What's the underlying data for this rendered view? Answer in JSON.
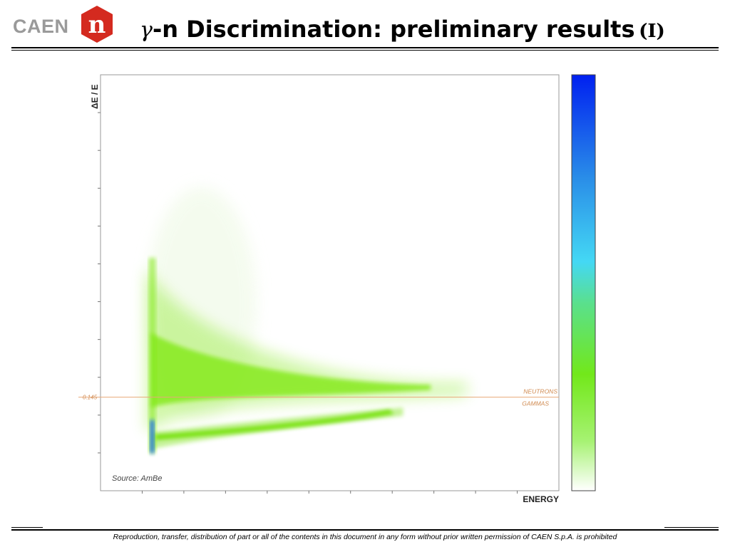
{
  "header": {
    "logo_text": "CAEN",
    "logo_badge_letter": "n",
    "title_gamma": "γ",
    "title_main": "-n Discrimination: preliminary results",
    "title_suffix": "(I)"
  },
  "footer": {
    "text": "Reproduction, transfer, distribution of part or all of the contents in this document in any form without prior written permission of  CAEN S.p.A. is prohibited"
  },
  "colors": {
    "logo_red": "#d42a1f",
    "threshold_line": "#e8a878",
    "threshold_text": "#d08a50",
    "neutron_band": "#7ee80e",
    "gamma_band": "#6fe000",
    "high_density": "#1a6cf0"
  },
  "chart_data": {
    "type": "heatmap",
    "title": "",
    "xlabel": "ENERGY",
    "ylabel": "ΔE / E",
    "x_ticks": 11,
    "y_ticks": 11,
    "grid": false,
    "threshold": {
      "value": 0.145,
      "label": "0.145",
      "upper_label": "NEUTRONS",
      "lower_label": "GAMMAS"
    },
    "annotation": "Source: AmBe",
    "series": [
      {
        "name": "NEUTRONS"
      },
      {
        "name": "GAMMAS"
      }
    ],
    "colorbar": {
      "stops": [
        {
          "offset": 0.0,
          "color": "#0020f0"
        },
        {
          "offset": 0.25,
          "color": "#2a8ee8"
        },
        {
          "offset": 0.45,
          "color": "#44d8f4"
        },
        {
          "offset": 0.55,
          "color": "#5ae08c"
        },
        {
          "offset": 0.72,
          "color": "#72e81a"
        },
        {
          "offset": 0.88,
          "color": "#a6f272"
        },
        {
          "offset": 1.0,
          "color": "#ffffff"
        }
      ]
    }
  }
}
